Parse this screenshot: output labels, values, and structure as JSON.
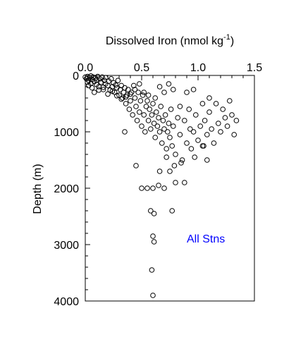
{
  "chart_data": {
    "type": "scatter",
    "title": "Dissolved Iron (nmol kg",
    "title_superscript": "-1",
    "title_close": ")",
    "xlabel": "Dissolved Iron (nmol kg-1)",
    "ylabel": "Depth (m)",
    "x_axis_position": "top",
    "y_axis_inverted": true,
    "xlim": [
      0.0,
      1.5
    ],
    "ylim": [
      0,
      4000
    ],
    "x_ticks": [
      0.0,
      0.5,
      1.0,
      1.5
    ],
    "x_tick_labels": [
      "0.0",
      "0.5",
      "1.0",
      "1.5"
    ],
    "y_ticks": [
      0,
      1000,
      2000,
      3000,
      4000
    ],
    "y_tick_labels": [
      "0",
      "1000",
      "2000",
      "3000",
      "4000"
    ],
    "grid": false,
    "legend": "none",
    "annotation": {
      "text": "All Stns",
      "color": "#0000ff"
    },
    "marker": "open-circle",
    "series": [
      {
        "points": [
          [
            0.0,
            30
          ],
          [
            0.01,
            60
          ],
          [
            0.02,
            20
          ],
          [
            0.02,
            120
          ],
          [
            0.03,
            90
          ],
          [
            0.03,
            180
          ],
          [
            0.04,
            40
          ],
          [
            0.05,
            10
          ],
          [
            0.05,
            140
          ],
          [
            0.06,
            70
          ],
          [
            0.06,
            220
          ],
          [
            0.07,
            30
          ],
          [
            0.08,
            110
          ],
          [
            0.09,
            50
          ],
          [
            0.1,
            160
          ],
          [
            0.1,
            80
          ],
          [
            0.11,
            20
          ],
          [
            0.12,
            200
          ],
          [
            0.13,
            60
          ],
          [
            0.14,
            120
          ],
          [
            0.15,
            30
          ],
          [
            0.16,
            250
          ],
          [
            0.17,
            90
          ],
          [
            0.18,
            150
          ],
          [
            0.18,
            40
          ],
          [
            0.2,
            180
          ],
          [
            0.21,
            100
          ],
          [
            0.22,
            260
          ],
          [
            0.23,
            60
          ],
          [
            0.24,
            200
          ],
          [
            0.25,
            130
          ],
          [
            0.26,
            300
          ],
          [
            0.27,
            170
          ],
          [
            0.28,
            220
          ],
          [
            0.29,
            90
          ],
          [
            0.3,
            350
          ],
          [
            0.31,
            250
          ],
          [
            0.32,
            180
          ],
          [
            0.33,
            400
          ],
          [
            0.34,
            300
          ],
          [
            0.35,
            220
          ],
          [
            0.36,
            500
          ],
          [
            0.37,
            350
          ],
          [
            0.38,
            250
          ],
          [
            0.39,
            600
          ],
          [
            0.4,
            450
          ],
          [
            0.41,
            300
          ],
          [
            0.42,
            700
          ],
          [
            0.43,
            180
          ],
          [
            0.44,
            400
          ],
          [
            0.45,
            550
          ],
          [
            0.46,
            800
          ],
          [
            0.47,
            300
          ],
          [
            0.48,
            650
          ],
          [
            0.49,
            450
          ],
          [
            0.5,
            900
          ],
          [
            0.51,
            350
          ],
          [
            0.52,
            700
          ],
          [
            0.53,
            1000
          ],
          [
            0.54,
            550
          ],
          [
            0.55,
            450
          ],
          [
            0.56,
            800
          ],
          [
            0.57,
            600
          ],
          [
            0.58,
            950
          ],
          [
            0.59,
            700
          ],
          [
            0.6,
            500
          ],
          [
            0.61,
            850
          ],
          [
            0.62,
            1100
          ],
          [
            0.63,
            650
          ],
          [
            0.64,
            900
          ],
          [
            0.65,
            750
          ],
          [
            0.66,
            1000
          ],
          [
            0.67,
            550
          ],
          [
            0.68,
            1200
          ],
          [
            0.69,
            800
          ],
          [
            0.7,
            950
          ],
          [
            0.71,
            700
          ],
          [
            0.72,
            1300
          ],
          [
            0.73,
            1000
          ],
          [
            0.74,
            850
          ],
          [
            0.75,
            1100
          ],
          [
            0.76,
            600
          ],
          [
            0.77,
            1250
          ],
          [
            0.78,
            900
          ],
          [
            0.8,
            1400
          ],
          [
            0.82,
            750
          ],
          [
            0.84,
            1050
          ],
          [
            0.86,
            1500
          ],
          [
            0.88,
            800
          ],
          [
            0.9,
            1200
          ],
          [
            0.92,
            600
          ],
          [
            0.94,
            1300
          ],
          [
            0.96,
            1000
          ],
          [
            0.98,
            700
          ],
          [
            1.0,
            1150
          ],
          [
            1.02,
            900
          ],
          [
            1.04,
            1250
          ],
          [
            1.06,
            800
          ],
          [
            1.08,
            1050
          ],
          [
            1.1,
            650
          ],
          [
            1.12,
            950
          ],
          [
            1.14,
            1200
          ],
          [
            1.16,
            500
          ],
          [
            1.18,
            850
          ],
          [
            1.2,
            1000
          ],
          [
            1.22,
            600
          ],
          [
            1.24,
            750
          ],
          [
            1.26,
            900
          ],
          [
            1.28,
            450
          ],
          [
            1.3,
            700
          ],
          [
            1.32,
            1050
          ],
          [
            1.34,
            800
          ],
          [
            0.35,
            1000
          ],
          [
            0.45,
            1600
          ],
          [
            0.5,
            2000
          ],
          [
            0.55,
            2000
          ],
          [
            0.6,
            2000
          ],
          [
            0.65,
            1950
          ],
          [
            0.7,
            2000
          ],
          [
            0.75,
            1700
          ],
          [
            0.8,
            1900
          ],
          [
            0.85,
            1550
          ],
          [
            0.88,
            1900
          ],
          [
            0.58,
            2400
          ],
          [
            0.61,
            2450
          ],
          [
            0.77,
            2400
          ],
          [
            0.6,
            2850
          ],
          [
            0.61,
            2950
          ],
          [
            0.59,
            3450
          ],
          [
            0.6,
            3900
          ],
          [
            0.66,
            1700
          ],
          [
            0.72,
            1450
          ],
          [
            0.79,
            1600
          ],
          [
            0.93,
            950
          ],
          [
            0.97,
            1450
          ],
          [
            1.05,
            1250
          ],
          [
            1.08,
            1500
          ],
          [
            0.08,
            300
          ],
          [
            0.12,
            260
          ],
          [
            0.16,
            210
          ],
          [
            0.2,
            330
          ],
          [
            0.24,
            280
          ],
          [
            0.28,
            360
          ],
          [
            0.32,
            420
          ],
          [
            0.36,
            380
          ],
          [
            0.4,
            330
          ],
          [
            0.44,
            250
          ],
          [
            0.48,
            150
          ],
          [
            0.52,
            300
          ],
          [
            0.56,
            350
          ],
          [
            0.62,
            400
          ],
          [
            0.66,
            200
          ],
          [
            0.7,
            300
          ],
          [
            0.74,
            150
          ],
          [
            0.78,
            250
          ],
          [
            0.84,
            550
          ],
          [
            0.9,
            300
          ],
          [
            0.96,
            250
          ],
          [
            1.04,
            500
          ],
          [
            1.1,
            400
          ]
        ]
      }
    ]
  }
}
